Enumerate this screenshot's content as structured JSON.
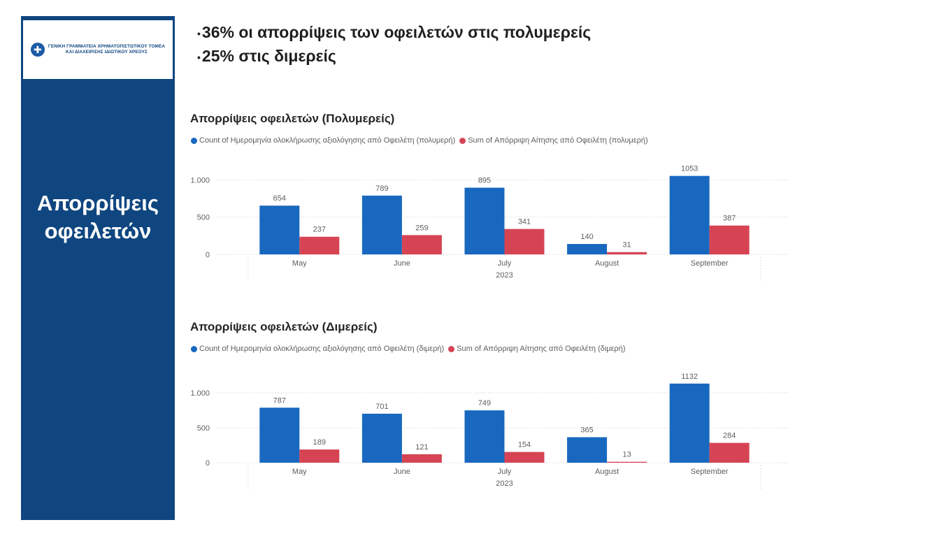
{
  "headline": {
    "bullets": [
      "36% οι απορρίψεις των οφειλετών στις πολυμερείς",
      "25% στις διμερείς"
    ]
  },
  "sidebar": {
    "logo_line1": "ΓΕΝΙΚΗ ΓΡΑΜΜΑΤΕΙΑ ΧΡΗΜΑΤΟΠΙΣΤΩΤΙΚΟΥ ΤΟΜΕΑ",
    "logo_line2": "ΚΑΙ ΔΙΑΧΕΙΡΙΣΗΣ ΙΔΙΩΤΙΚΟΥ ΧΡΕΟΥΣ",
    "title_line1": "Απορρίψεις",
    "title_line2": "οφειλετών",
    "background": "#0f4680"
  },
  "colors": {
    "series1": "#1868bf",
    "series2": "#d64454",
    "grid": "#c8c6c4",
    "axis_text": "#605e5c",
    "label_text": "#605e5c"
  },
  "chart_data": [
    {
      "type": "bar",
      "title": "Απορρίψεις οφειλετών (Πολυμερείς)",
      "categories": [
        "May",
        "June",
        "July",
        "August",
        "September"
      ],
      "x_group_label": "2023",
      "series": [
        {
          "name": "Count of Ημερομηνία ολοκλήρωσης αξιολόγησης από Οφειλέτη (πολυμερή)",
          "values": [
            654,
            789,
            895,
            140,
            1053
          ]
        },
        {
          "name": "Sum of Απόρριψη Αίτησης από Οφειλέτη (πολυμερή)",
          "values": [
            237,
            259,
            341,
            31,
            387
          ]
        }
      ],
      "yticks": [
        0,
        500,
        1000
      ],
      "ytick_labels": [
        "0",
        "500",
        "1.000"
      ],
      "ylim": [
        0,
        1200
      ],
      "grid": true,
      "legend_position": "top-left"
    },
    {
      "type": "bar",
      "title": "Απορρίψεις οφειλετών (Διμερείς)",
      "categories": [
        "May",
        "June",
        "July",
        "August",
        "September"
      ],
      "x_group_label": "2023",
      "series": [
        {
          "name": "Count of Ημερομηνία ολοκλήρωσης αξιολόγησης από Οφειλέτη (διμερή)",
          "values": [
            787,
            701,
            749,
            365,
            1132
          ]
        },
        {
          "name": "Sum of Απόρριψη Αίτησης από Οφειλέτη (διμερή)",
          "values": [
            189,
            121,
            154,
            13,
            284
          ]
        }
      ],
      "yticks": [
        0,
        500,
        1000
      ],
      "ytick_labels": [
        "0",
        "500",
        "1.000"
      ],
      "ylim": [
        0,
        1250
      ],
      "grid": true,
      "legend_position": "top-left"
    }
  ]
}
